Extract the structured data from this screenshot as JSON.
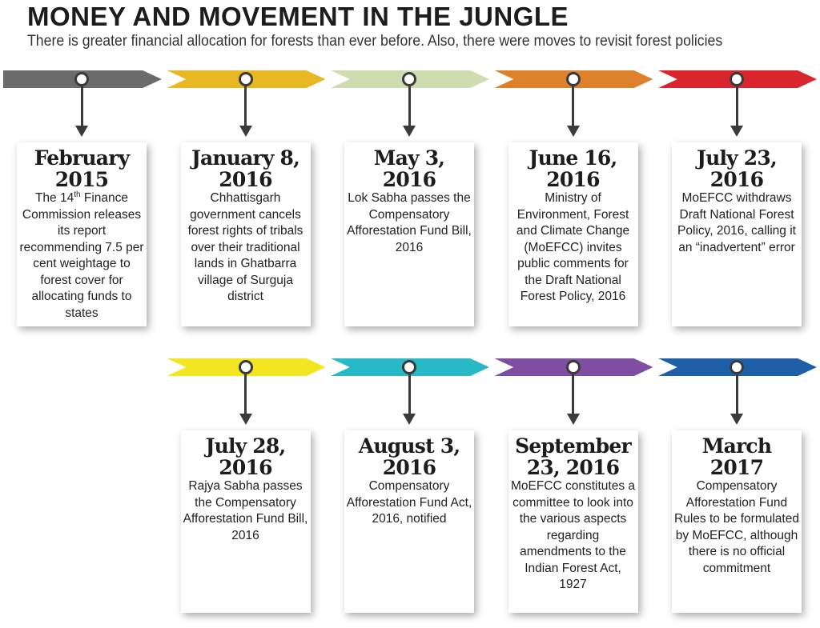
{
  "header": {
    "title": "MONEY AND MOVEMENT IN THE JUNGLE",
    "subtitle": "There is greater financial allocation for forests than ever before. Also, there were moves to revisit forest policies"
  },
  "timeline": {
    "rows": [
      {
        "events": [
          {
            "color": "#6b6b6b",
            "date": "February 2015",
            "text_before_sup": "The 14",
            "sup": "th",
            "text_after_sup": " Finance Commission releases its report recommending 7.5 per cent weightage to forest cover for allocating funds to states"
          },
          {
            "color": "#e8b724",
            "date": "January 8, 2016",
            "text": "Chhattisgarh government cancels forest rights of tribals over their traditional lands in Ghatbarra village of Surguja district"
          },
          {
            "color": "#cfdcb0",
            "date": "May 3, 2016",
            "text": "Lok Sabha passes the Compensatory Afforestation Fund Bill, 2016"
          },
          {
            "color": "#dd822a",
            "date": "June 16, 2016",
            "text": "Ministry of Environment, Forest and Climate Change (MoEFCC) invites public comments for the Draft National Forest Policy, 2016"
          },
          {
            "color": "#d8262c",
            "date": "July 23, 2016",
            "text": "MoEFCC withdraws Draft National Forest Policy, 2016, calling it an “inadvertent” error"
          }
        ]
      },
      {
        "events": [
          {
            "color": "#f3e620",
            "date": "July 28, 2016",
            "text": "Rajya Sabha passes the Compensatory Afforestation Fund Bill, 2016"
          },
          {
            "color": "#27b9c6",
            "date": "August 3, 2016",
            "text": "Compensatory Afforestation Fund Act, 2016, notified"
          },
          {
            "color": "#7f4ea3",
            "date": "September 23, 2016",
            "text": "MoEFCC constitutes a committee to look into the various aspects regarding amendments to the Indian Forest Act, 1927"
          },
          {
            "color": "#1e5fa8",
            "date": "March 2017",
            "text": "Compensatory Afforestation Fund Rules to be formulated by MoEFCC, although there is no official commitment"
          }
        ]
      }
    ]
  }
}
